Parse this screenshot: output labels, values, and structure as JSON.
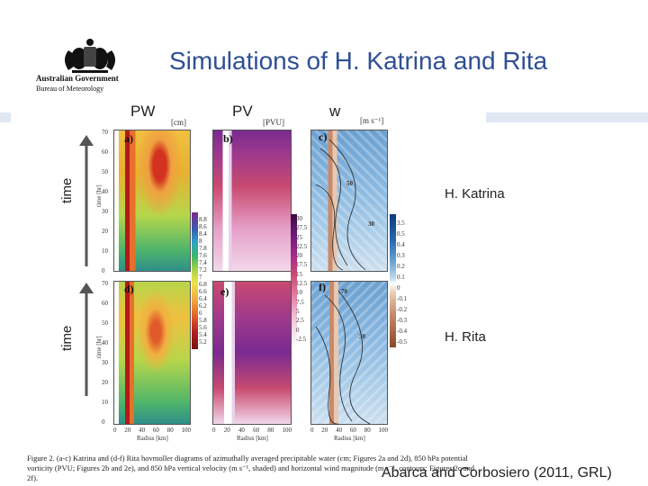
{
  "slide": {
    "title": "Simulations of H. Katrina and Rita",
    "logo": {
      "name": "australian-government-coat-of-arms",
      "line1": "Australian Government",
      "line2": "Bureau of Meteorology"
    },
    "columns": [
      "PW",
      "PV",
      "w"
    ],
    "units": [
      "[cm]",
      "[PVU]",
      "[m s⁻¹]"
    ],
    "rows": [
      "H. Katrina",
      "H. Rita"
    ],
    "time_label": "time",
    "panel_labels": [
      "a)",
      "b)",
      "c)",
      "d)",
      "e)",
      "f)"
    ],
    "axis_y_label": "time [hr]",
    "axis_x_labels": [
      "Radius [km]",
      "Radius [km]",
      "Radius [km]"
    ],
    "y_ticks": [
      "70",
      "60",
      "50",
      "40",
      "30",
      "20",
      "10",
      "0"
    ],
    "x_ticks": [
      "0",
      "20",
      "40",
      "60",
      "80",
      "100"
    ],
    "colorbars": {
      "pw_top": [
        "8.8",
        "8.6",
        "8.4",
        "8",
        "7.8",
        "7.6",
        "7.4",
        "7.2",
        "7"
      ],
      "pw_bottom": [
        "6.8",
        "6.6",
        "6.4",
        "6.2",
        "6",
        "5.8",
        "5.6",
        "5.4",
        "5.2"
      ],
      "pv": [
        "30",
        "27.5",
        "25",
        "22.5",
        "20",
        "17.5",
        "15",
        "12.5",
        "10",
        "7.5",
        "5",
        "2.5",
        "0",
        "-2.5"
      ],
      "w_top": [
        "3.5",
        "0.5",
        "0.4",
        "0.3",
        "0.2",
        "0.1"
      ],
      "w_bottom": [
        "0",
        "-0.1",
        "-0.2",
        "-0.3",
        "-0.4",
        "-0.5"
      ]
    },
    "contour_labels": [
      "50",
      "30",
      "70",
      "30"
    ],
    "caption": "Figure 2. (a-c) Katrina and (d-f) Rita hovmoller diagrams of azimuthally averaged precipitable water (cm; Figures 2a and 2d), 850 hPa potential vorticity (PVU; Figures 2b and 2e), and 850 hPa vertical velocity (m s⁻¹, shaded) and horizontal wind magnitude (m s⁻¹, contours; Figures 2c and 2f).",
    "credit": "Abarca and Corbosiero (2011, GRL)",
    "colors": {
      "title": "#2f4f95",
      "band": "#dfe8f3"
    }
  }
}
